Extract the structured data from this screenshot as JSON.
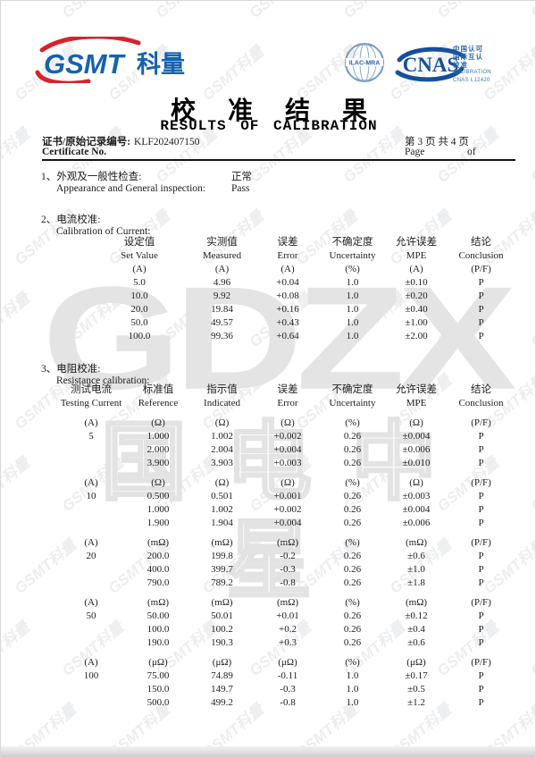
{
  "header": {
    "logo": {
      "latin": "GSMT",
      "cn": "科量"
    },
    "badges": {
      "ilac_label": "ILAC-MRA",
      "cnas_label": "CNAS",
      "accreditation_cn": [
        "中国认可",
        "国际互认",
        "校准"
      ],
      "accreditation_en": [
        "CALIBRATION",
        "CNAS L12420"
      ]
    },
    "title_cn": "校准结果",
    "title_en": "RESULTS OF CALIBRATION",
    "certificate": {
      "label_cn": "证书/原始记录编号:",
      "number": "KLF202407150",
      "label_en": "Certificate No.",
      "page_cn": "第 3 页  共 4 页",
      "page_label": "Page",
      "of_label": "of"
    }
  },
  "section1": {
    "label_cn": "1、外观及一般性检查:",
    "label_en": "Appearance and General inspection:",
    "value_cn": "正常",
    "value_en": "Pass"
  },
  "section2": {
    "label_cn": "2、电流校准:",
    "label_en": "Calibration of Current:",
    "table": {
      "headers": [
        {
          "cn": "设定值",
          "en": "Set Value",
          "unit": "(A)"
        },
        {
          "cn": "实测值",
          "en": "Measured",
          "unit": "(A)"
        },
        {
          "cn": "误差",
          "en": "Error",
          "unit": "(A)"
        },
        {
          "cn": "不确定度",
          "en": "Uncertainty",
          "unit": "(%)"
        },
        {
          "cn": "允许误差",
          "en": "MPE",
          "unit": "(A)"
        },
        {
          "cn": "结论",
          "en": "Conclusion",
          "unit": "(P/F)"
        }
      ],
      "rows": [
        [
          "5.0",
          "4.96",
          "+0.04",
          "1.0",
          "±0.10",
          "P"
        ],
        [
          "10.0",
          "9.92",
          "+0.08",
          "1.0",
          "±0.20",
          "P"
        ],
        [
          "20.0",
          "19.84",
          "+0.16",
          "1.0",
          "±0.40",
          "P"
        ],
        [
          "50.0",
          "49.57",
          "+0.43",
          "1.0",
          "±1.00",
          "P"
        ],
        [
          "100.0",
          "99.36",
          "+0.64",
          "1.0",
          "±2.00",
          "P"
        ]
      ]
    }
  },
  "section3": {
    "label_cn": "3、电阻校准:",
    "label_en": "Resistance calibration:",
    "table": {
      "headers": [
        {
          "cn": "测试电流",
          "en": "Testing Current"
        },
        {
          "cn": "标准值",
          "en": "Reference"
        },
        {
          "cn": "指示值",
          "en": "Indicated"
        },
        {
          "cn": "误差",
          "en": "Error"
        },
        {
          "cn": "不确定度",
          "en": "Uncertainty"
        },
        {
          "cn": "允许误差",
          "en": "MPE"
        },
        {
          "cn": "结论",
          "en": "Conclusion"
        }
      ],
      "blocks": [
        {
          "units": [
            "(A)",
            "(Ω)",
            "(Ω)",
            "(Ω)",
            "(%)",
            "(Ω)",
            "(P/F)"
          ],
          "testing_current": "5",
          "rows": [
            [
              "1.000",
              "1.002",
              "+0.002",
              "0.26",
              "±0.004",
              "P"
            ],
            [
              "2.000",
              "2.004",
              "+0.004",
              "0.26",
              "±0.006",
              "P"
            ],
            [
              "3.900",
              "3.903",
              "+0.003",
              "0.26",
              "±0.010",
              "P"
            ]
          ]
        },
        {
          "units": [
            "(A)",
            "(Ω)",
            "(Ω)",
            "(Ω)",
            "(%)",
            "(Ω)",
            "(P/F)"
          ],
          "testing_current": "10",
          "rows": [
            [
              "0.500",
              "0.501",
              "+0.001",
              "0.26",
              "±0.003",
              "P"
            ],
            [
              "1.000",
              "1.002",
              "+0.002",
              "0.26",
              "±0.004",
              "P"
            ],
            [
              "1.900",
              "1.904",
              "+0.004",
              "0.26",
              "±0.006",
              "P"
            ]
          ]
        },
        {
          "units": [
            "(A)",
            "(mΩ)",
            "(mΩ)",
            "(mΩ)",
            "(%)",
            "(mΩ)",
            "(P/F)"
          ],
          "testing_current": "20",
          "rows": [
            [
              "200.0",
              "199.8",
              "-0.2",
              "0.26",
              "±0.6",
              "P"
            ],
            [
              "400.0",
              "399.7",
              "-0.3",
              "0.26",
              "±1.0",
              "P"
            ],
            [
              "790.0",
              "789.2",
              "-0.8",
              "0.26",
              "±1.8",
              "P"
            ]
          ]
        },
        {
          "units": [
            "(A)",
            "(mΩ)",
            "(mΩ)",
            "(mΩ)",
            "(%)",
            "(mΩ)",
            "(P/F)"
          ],
          "testing_current": "50",
          "rows": [
            [
              "50.00",
              "50.01",
              "+0.01",
              "0.26",
              "±0.12",
              "P"
            ],
            [
              "100.0",
              "100.2",
              "+0.2",
              "0.26",
              "±0.4",
              "P"
            ],
            [
              "190.0",
              "190.3",
              "+0.3",
              "0.26",
              "±0.6",
              "P"
            ]
          ]
        },
        {
          "units": [
            "(A)",
            "(μΩ)",
            "(μΩ)",
            "(μΩ)",
            "(%)",
            "(μΩ)",
            "(P/F)"
          ],
          "testing_current": "100",
          "rows": [
            [
              "75.00",
              "74.89",
              "-0.11",
              "1.0",
              "±0.17",
              "P"
            ],
            [
              "150.0",
              "149.7",
              "-0.3",
              "1.0",
              "±0.5",
              "P"
            ],
            [
              "500.0",
              "499.2",
              "-0.8",
              "1.0",
              "±1.2",
              "P"
            ]
          ]
        }
      ]
    }
  },
  "watermark": {
    "tile_text": "GSMT科量",
    "center_letters": "GDZX",
    "center_cn": "国电中星"
  },
  "colors": {
    "brand_blue": "#1563ae",
    "brand_red": "#d8232a",
    "badge_blue": "#2b66ae",
    "watermark_gray": "#e4e4e4"
  }
}
